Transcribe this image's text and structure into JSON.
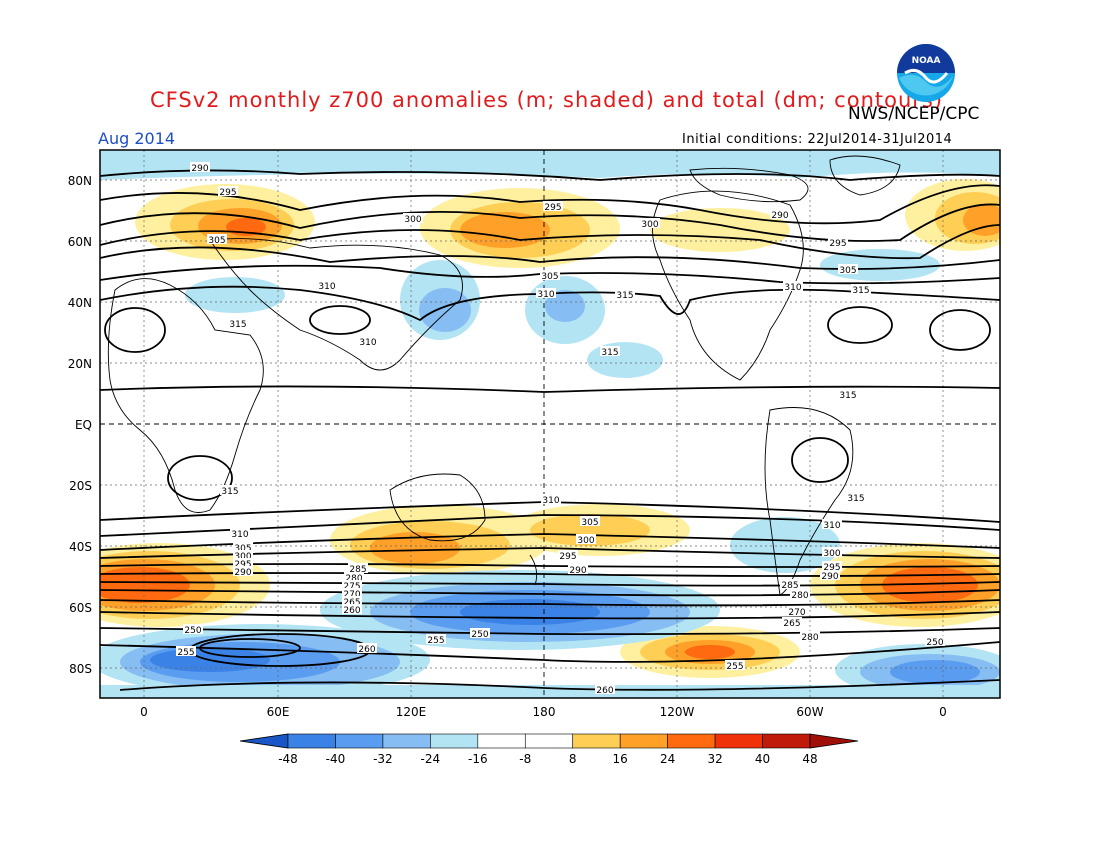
{
  "header": {
    "title": "CFSv2 monthly z700 anomalies (m; shaded) and total (dm; contours)",
    "org": "NWS/NCEP/CPC",
    "month": "Aug 2014",
    "initial_conditions": "Initial conditions: 22Jul2014-31Jul2014",
    "logo_text": "NOAA"
  },
  "map": {
    "lat_labels": [
      "80N",
      "60N",
      "40N",
      "20N",
      "EQ",
      "20S",
      "40S",
      "60S",
      "80S"
    ],
    "lon_labels": [
      "0",
      "60E",
      "120E",
      "180",
      "120W",
      "60W",
      "0"
    ],
    "contour_labels": [
      "290",
      "295",
      "300",
      "305",
      "310",
      "315",
      "250",
      "255",
      "260",
      "265",
      "270",
      "275",
      "280",
      "285"
    ]
  },
  "colorbar": {
    "ticks": [
      "-48",
      "-40",
      "-32",
      "-24",
      "-16",
      "-8",
      "8",
      "16",
      "24",
      "32",
      "40",
      "48"
    ],
    "colors": [
      "#2166d6",
      "#3a82e6",
      "#5a9cf0",
      "#86bdf2",
      "#b2e4f4",
      "#ffffff",
      "#fff0a0",
      "#ffcf55",
      "#ffa028",
      "#ff6a10",
      "#f0320a",
      "#c01a0a"
    ]
  }
}
